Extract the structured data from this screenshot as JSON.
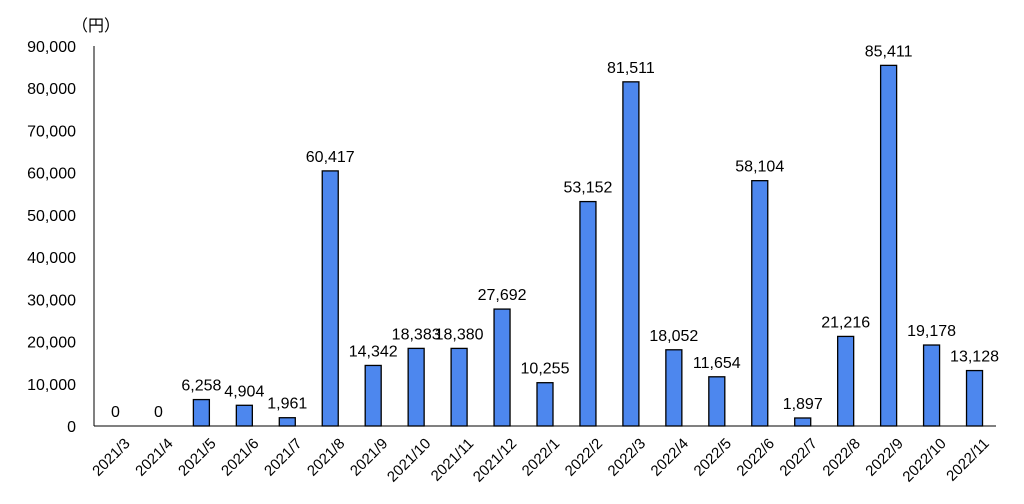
{
  "chart_data": {
    "type": "bar",
    "unit_label": "（円）",
    "categories": [
      "2021/3",
      "2021/4",
      "2021/5",
      "2021/6",
      "2021/7",
      "2021/8",
      "2021/9",
      "2021/10",
      "2021/11",
      "2021/12",
      "2022/1",
      "2022/2",
      "2022/3",
      "2022/4",
      "2022/5",
      "2022/6",
      "2022/7",
      "2022/8",
      "2022/9",
      "2022/10",
      "2022/11"
    ],
    "values": [
      0,
      0,
      6258,
      4904,
      1961,
      60417,
      14342,
      18383,
      18380,
      27692,
      10255,
      53152,
      81511,
      18052,
      11654,
      58104,
      1897,
      21216,
      85411,
      19178,
      13128
    ],
    "data_labels": [
      "0",
      "0",
      "6,258",
      "4,904",
      "1,961",
      "60,417",
      "14,342",
      "18,383",
      "18,380",
      "27,692",
      "10,255",
      "53,152",
      "81,511",
      "18,052",
      "11,654",
      "58,104",
      "1,897",
      "21,216",
      "85,411",
      "19,178",
      "13,128"
    ],
    "ylim": [
      0,
      90000
    ],
    "yticks": [
      0,
      10000,
      20000,
      30000,
      40000,
      50000,
      60000,
      70000,
      80000,
      90000
    ],
    "ytick_labels": [
      "0",
      "10,000",
      "20,000",
      "30,000",
      "40,000",
      "50,000",
      "60,000",
      "70,000",
      "80,000",
      "90,000"
    ],
    "bar_color": "#4d87ee",
    "grid": false,
    "legend": "none"
  }
}
